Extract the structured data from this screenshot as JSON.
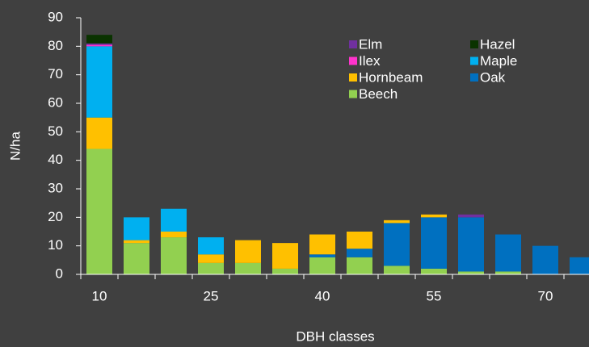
{
  "chart_data": {
    "type": "stacked_bar",
    "x_label": "DBH classes",
    "y_label": "N/ha",
    "categories": [
      10,
      null,
      null,
      25,
      null,
      null,
      40,
      null,
      null,
      55,
      null,
      null,
      70,
      null
    ],
    "series": [
      {
        "name": "Beech",
        "color": "#92d050",
        "values": [
          44,
          11,
          13,
          4,
          4,
          2,
          6,
          6,
          3,
          2,
          1,
          1,
          0,
          0
        ]
      },
      {
        "name": "Oak",
        "color": "#0070c0",
        "values": [
          0,
          0,
          0,
          0,
          0,
          0,
          1,
          3,
          15,
          18,
          19,
          13,
          10,
          6
        ]
      },
      {
        "name": "Hornbeam",
        "color": "#ffc000",
        "values": [
          11,
          1,
          2,
          3,
          8,
          9,
          7,
          6,
          1,
          1,
          0,
          0,
          0,
          0
        ]
      },
      {
        "name": "Maple",
        "color": "#00b0f0",
        "values": [
          25,
          8,
          8,
          6,
          0,
          0,
          0,
          0,
          0,
          0,
          0,
          0,
          0,
          0
        ]
      },
      {
        "name": "Ilex",
        "color": "#ff33cc",
        "values": [
          0.5,
          0,
          0,
          0,
          0,
          0,
          0,
          0,
          0,
          0,
          0,
          0,
          0,
          0
        ]
      },
      {
        "name": "Elm",
        "color": "#7030a0",
        "values": [
          0.5,
          0,
          0,
          0,
          0,
          0,
          0,
          0,
          0,
          0,
          1,
          0,
          0,
          0
        ]
      },
      {
        "name": "Hazel",
        "color": "#0a3300",
        "values": [
          3,
          0,
          0,
          0,
          0,
          0,
          0,
          0,
          0,
          0,
          0,
          0,
          0,
          0
        ]
      }
    ],
    "ylim": [
      0,
      90
    ],
    "yticks": [
      0,
      10,
      20,
      30,
      40,
      50,
      60,
      70,
      80,
      90
    ],
    "legend": "top-right"
  }
}
